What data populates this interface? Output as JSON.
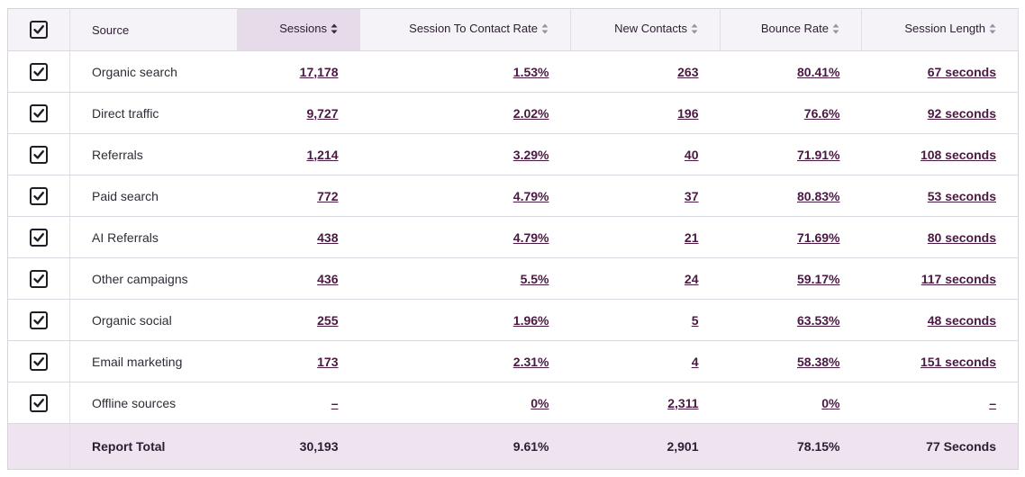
{
  "table": {
    "headers": [
      "Source",
      "Sessions",
      "Session To Contact Rate",
      "New Contacts",
      "Bounce Rate",
      "Session Length"
    ],
    "sorted_column": 1,
    "rows": [
      [
        "Organic search",
        "17,178",
        "1.53%",
        "263",
        "80.41%",
        "67 seconds"
      ],
      [
        "Direct traffic",
        "9,727",
        "2.02%",
        "196",
        "76.6%",
        "92 seconds"
      ],
      [
        "Referrals",
        "1,214",
        "3.29%",
        "40",
        "71.91%",
        "108 seconds"
      ],
      [
        "Paid search",
        "772",
        "4.79%",
        "37",
        "80.83%",
        "53 seconds"
      ],
      [
        "AI Referrals",
        "438",
        "4.79%",
        "21",
        "71.69%",
        "80 seconds"
      ],
      [
        "Other campaigns",
        "436",
        "5.5%",
        "24",
        "59.17%",
        "117 seconds"
      ],
      [
        "Organic social",
        "255",
        "1.96%",
        "5",
        "63.53%",
        "48 seconds"
      ],
      [
        "Email marketing",
        "173",
        "2.31%",
        "4",
        "58.38%",
        "151 seconds"
      ],
      [
        "Offline sources",
        "–",
        "0%",
        "2,311",
        "0%",
        "–"
      ]
    ],
    "footer": [
      "Report Total",
      "30,193",
      "9.61%",
      "2,901",
      "78.15%",
      "77 Seconds"
    ]
  }
}
